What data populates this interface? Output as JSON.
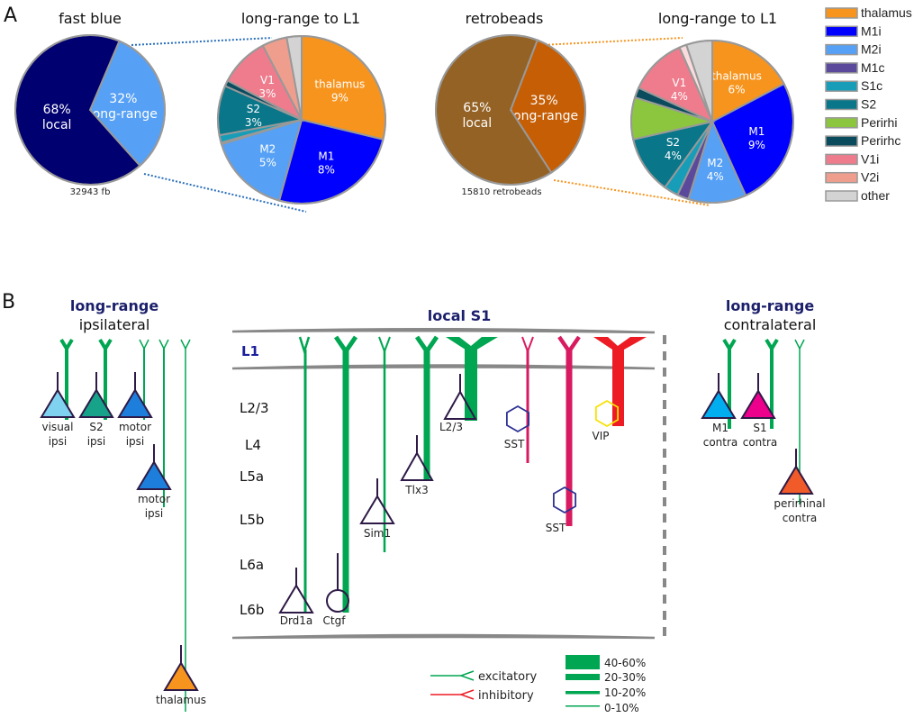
{
  "panel_a": {
    "label": "A",
    "fast_blue": {
      "title": "fast blue",
      "count_label": "32943 fb",
      "overview": [
        {
          "name": "local",
          "pct_label": "68%",
          "label": "local",
          "value": 68,
          "color": "#000070"
        },
        {
          "name": "long-range",
          "pct_label": "32%",
          "label": "long-range",
          "value": 32,
          "color": "#56a0f5"
        }
      ],
      "detail_title": "long-range to L1",
      "detail": [
        {
          "name": "thalamus",
          "value": 9,
          "label": "thalamus",
          "pct_label": "9%",
          "color": "#f7941d"
        },
        {
          "name": "M1i",
          "value": 8,
          "label": "M1",
          "pct_label": "8%",
          "color": "#0000ff"
        },
        {
          "name": "M2i",
          "value": 5,
          "label": "M2",
          "pct_label": "5%",
          "color": "#56a0f5"
        },
        {
          "name": "M1c",
          "value": 0.1,
          "label": "",
          "pct_label": "",
          "color": "#5b4a9b"
        },
        {
          "name": "S1c",
          "value": 0.45,
          "label": "",
          "pct_label": "",
          "color": "#179db8"
        },
        {
          "name": "S2",
          "value": 3,
          "label": "S2",
          "pct_label": "3%",
          "color": "#0a7689"
        },
        {
          "name": "Perirhi",
          "value": 0,
          "label": "",
          "pct_label": "",
          "color": "#8cc63f"
        },
        {
          "name": "Perirhc",
          "value": 0.35,
          "label": "",
          "pct_label": "",
          "color": "#0b4b5e"
        },
        {
          "name": "V1i",
          "value": 3,
          "label": "V1",
          "pct_label": "3%",
          "color": "#ee7c8c"
        },
        {
          "name": "V2i",
          "value": 1.5,
          "label": "",
          "pct_label": "",
          "color": "#ef9e8e"
        },
        {
          "name": "other",
          "value": 0.9,
          "label": "",
          "pct_label": "",
          "color": "#d3d3d3"
        }
      ]
    },
    "retrobeads": {
      "title": "retrobeads",
      "count_label": "15810 retrobeads",
      "overview": [
        {
          "name": "local",
          "pct_label": "65%",
          "label": "local",
          "value": 65,
          "color": "#946224"
        },
        {
          "name": "long-range",
          "pct_label": "35%",
          "label": "long-range",
          "value": 35,
          "color": "#c55e05"
        }
      ],
      "detail_title": "long-range to L1",
      "detail": [
        {
          "name": "thalamus",
          "value": 6,
          "label": "thalamus",
          "pct_label": "6%",
          "color": "#f7941d"
        },
        {
          "name": "M1i",
          "value": 9,
          "label": "M1",
          "pct_label": "9%",
          "color": "#0000ff"
        },
        {
          "name": "M2i",
          "value": 4,
          "label": "M2",
          "pct_label": "4%",
          "color": "#56a0f5"
        },
        {
          "name": "M1c",
          "value": 0.8,
          "label": "",
          "pct_label": "",
          "color": "#5b4a9b"
        },
        {
          "name": "S1c",
          "value": 1,
          "label": "",
          "pct_label": "",
          "color": "#179db8"
        },
        {
          "name": "S2",
          "value": 4,
          "label": "S2",
          "pct_label": "4%",
          "color": "#0a7689"
        },
        {
          "name": "Perirhi",
          "value": 2.9,
          "label": "",
          "pct_label": "",
          "color": "#8cc63f"
        },
        {
          "name": "Perirhc",
          "value": 0.7,
          "label": "",
          "pct_label": "",
          "color": "#0b4b5e"
        },
        {
          "name": "V1i",
          "value": 4,
          "label": "V1",
          "pct_label": "4%",
          "color": "#ee7c8c"
        },
        {
          "name": "V2i",
          "value": 0.5,
          "label": "",
          "pct_label": "",
          "color": "#fbdcdc"
        },
        {
          "name": "other",
          "value": 1.8,
          "label": "",
          "pct_label": "",
          "color": "#d3d3d3"
        }
      ]
    },
    "legend": [
      {
        "label": "thalamus",
        "color": "#f7941d"
      },
      {
        "label": "M1i",
        "color": "#0000ff"
      },
      {
        "label": "M2i",
        "color": "#56a0f5"
      },
      {
        "label": "M1c",
        "color": "#5b4a9b"
      },
      {
        "label": "S1c",
        "color": "#179db8"
      },
      {
        "label": "S2",
        "color": "#0a7689"
      },
      {
        "label": "Perirhi",
        "color": "#8cc63f"
      },
      {
        "label": "Perirhc",
        "color": "#0b4b5e"
      },
      {
        "label": "V1i",
        "color": "#ee7c8c"
      },
      {
        "label": "V2i",
        "color": "#ef9e8e"
      },
      {
        "label": "other",
        "color": "#d3d3d3"
      }
    ]
  },
  "panel_b": {
    "label": "B",
    "ipsi_title": "long-range",
    "ipsi_subtitle": "ipsilateral",
    "local_title": "local S1",
    "contra_title": "long-range",
    "contra_subtitle": "contralateral",
    "layers": [
      "L1",
      "L2/3",
      "L4",
      "L5a",
      "L5b",
      "L6a",
      "L6b"
    ],
    "ipsi_cells": [
      {
        "line1": "visual",
        "line2": "ipsi",
        "color": "#7fd3f0",
        "strength": "20-30%"
      },
      {
        "line1": "S2",
        "line2": "ipsi",
        "color": "#17a28a",
        "strength": "20-30%"
      },
      {
        "line1": "motor",
        "line2": "ipsi",
        "color": "#1d7fdb",
        "strength": "0-10%"
      },
      {
        "line1": "motor",
        "line2": "ipsi",
        "color": "#1d7fdb",
        "strength": "0-10%"
      },
      {
        "line1": "thalamus",
        "line2": "",
        "color": "#f7941d",
        "strength": "0-10%"
      }
    ],
    "local_cells": [
      {
        "label": "Drd1a",
        "shape": "triangle",
        "type": "excitatory",
        "strength": "10-20%"
      },
      {
        "label": "Ctgf",
        "shape": "circle",
        "type": "excitatory",
        "strength": "20-30%"
      },
      {
        "label": "Sim1",
        "shape": "triangle",
        "type": "excitatory",
        "strength": "0-10%"
      },
      {
        "label": "Tlx3",
        "shape": "triangle",
        "type": "excitatory",
        "strength": "20-30%"
      },
      {
        "label": "L2/3",
        "shape": "triangle",
        "type": "excitatory",
        "strength": "40-60%"
      },
      {
        "label": "SST",
        "shape": "hexagon",
        "type": "inhibitory",
        "strength": "0-10%"
      },
      {
        "label": "SST",
        "shape": "hexagon",
        "type": "inhibitory",
        "strength": "20-30%"
      },
      {
        "label": "VIP",
        "shape": "hexagon",
        "type": "inhibitory",
        "strength": "40-60%"
      }
    ],
    "contra_cells": [
      {
        "line1": "M1",
        "line2": "contra",
        "color": "#00aeef",
        "strength": "20-30%"
      },
      {
        "line1": "S1",
        "line2": "contra",
        "color": "#ec008c",
        "strength": "20-30%"
      },
      {
        "line1": "perirhinal",
        "line2": "contra",
        "color": "#f15a29",
        "strength": "0-10%"
      }
    ],
    "type_legend": [
      {
        "label": "excitatory",
        "color": "#00a651"
      },
      {
        "label": "inhibitory",
        "color": "#ed1c24"
      }
    ],
    "width_legend": [
      "40-60%",
      "20-30%",
      "10-20%",
      "0-10%"
    ]
  }
}
